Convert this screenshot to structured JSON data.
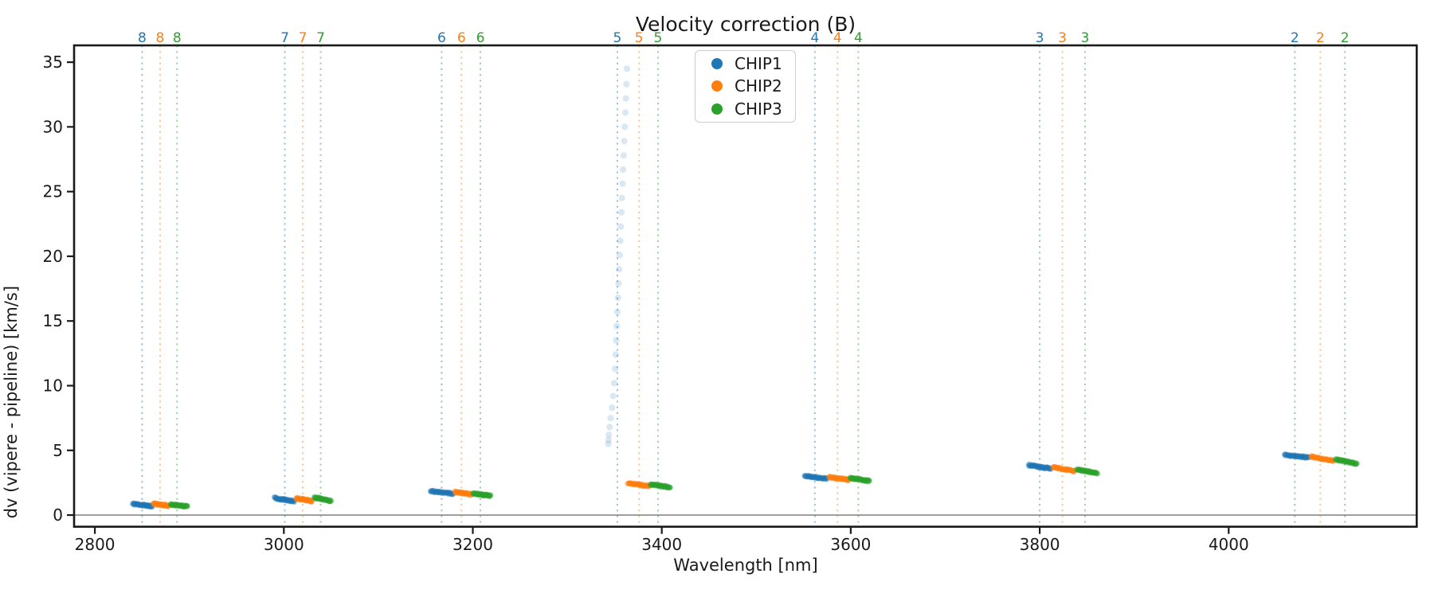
{
  "figure": {
    "title": "Velocity correction (B)"
  },
  "axes": {
    "xlabel": "Wavelength [nm]",
    "ylabel": "dv (vipere - pipeline) [km/s]",
    "xticks": [
      2800,
      3000,
      3200,
      3400,
      3600,
      3800,
      4000
    ],
    "yticks": [
      0,
      5,
      10,
      15,
      20,
      25,
      30,
      35
    ]
  },
  "legend": {
    "position": "upper center",
    "items": [
      {
        "label": "CHIP1",
        "color": "#1f77b4"
      },
      {
        "label": "CHIP2",
        "color": "#ff7f0e"
      },
      {
        "label": "CHIP3",
        "color": "#2ca02c"
      }
    ]
  },
  "chart_data": {
    "type": "scatter",
    "title": "Velocity correction (B)",
    "xlabel": "Wavelength [nm]",
    "ylabel": "dv (vipere - pipeline) [km/s]",
    "xlim": [
      2778,
      4199
    ],
    "ylim": [
      -0.9,
      36.3
    ],
    "grid": false,
    "zero_line_y": 0,
    "series_colors": {
      "CHIP1": "#1f77b4",
      "CHIP2": "#ff7f0e",
      "CHIP3": "#2ca02c"
    },
    "marker_lines_style": "dotted vertical line at each chip center, labeled with order number above top axis",
    "orders": [
      {
        "order": 8,
        "chips": [
          {
            "chip": "CHIP1",
            "center_nm": 2850,
            "span_nm": [
              2840,
              2861
            ],
            "dv": [
              0.86,
              0.68
            ]
          },
          {
            "chip": "CHIP2",
            "center_nm": 2869,
            "span_nm": [
              2862,
              2878
            ],
            "dv": [
              0.88,
              0.73
            ]
          },
          {
            "chip": "CHIP3",
            "center_nm": 2887,
            "span_nm": [
              2880,
              2898
            ],
            "dv": [
              0.82,
              0.66
            ]
          }
        ]
      },
      {
        "order": 7,
        "chips": [
          {
            "chip": "CHIP1",
            "center_nm": 3001,
            "span_nm": [
              2990,
              3011
            ],
            "dv": [
              1.32,
              1.06
            ]
          },
          {
            "chip": "CHIP2",
            "center_nm": 3020,
            "span_nm": [
              3013,
              3030
            ],
            "dv": [
              1.3,
              1.08
            ]
          },
          {
            "chip": "CHIP3",
            "center_nm": 3039,
            "span_nm": [
              3032,
              3050
            ],
            "dv": [
              1.36,
              1.1
            ]
          }
        ]
      },
      {
        "order": 6,
        "chips": [
          {
            "chip": "CHIP1",
            "center_nm": 3167,
            "span_nm": [
              3155,
              3179
            ],
            "dv": [
              1.85,
              1.65
            ]
          },
          {
            "chip": "CHIP2",
            "center_nm": 3188,
            "span_nm": [
              3181,
              3198
            ],
            "dv": [
              1.78,
              1.61
            ]
          },
          {
            "chip": "CHIP3",
            "center_nm": 3208,
            "span_nm": [
              3200,
              3219
            ],
            "dv": [
              1.67,
              1.5
            ]
          }
        ]
      },
      {
        "order": 5,
        "chips": [
          {
            "chip": "CHIP1",
            "center_nm": 3353,
            "span_nm": null,
            "dv": null,
            "outlier": true
          },
          {
            "chip": "CHIP2",
            "center_nm": 3376,
            "span_nm": [
              3364,
              3387
            ],
            "dv": [
              2.46,
              2.24
            ]
          },
          {
            "chip": "CHIP3",
            "center_nm": 3396,
            "span_nm": [
              3388,
              3409
            ],
            "dv": [
              2.36,
              2.14
            ]
          }
        ]
      },
      {
        "order": 4,
        "chips": [
          {
            "chip": "CHIP1",
            "center_nm": 3562,
            "span_nm": [
              3551,
              3575
            ],
            "dv": [
              3.05,
              2.8
            ]
          },
          {
            "chip": "CHIP2",
            "center_nm": 3586,
            "span_nm": [
              3577,
              3598
            ],
            "dv": [
              2.94,
              2.72
            ]
          },
          {
            "chip": "CHIP3",
            "center_nm": 3608,
            "span_nm": [
              3599,
              3620
            ],
            "dv": [
              2.86,
              2.62
            ]
          }
        ]
      },
      {
        "order": 3,
        "chips": [
          {
            "chip": "CHIP1",
            "center_nm": 3800,
            "span_nm": [
              3788,
              3812
            ],
            "dv": [
              3.88,
              3.58
            ]
          },
          {
            "chip": "CHIP2",
            "center_nm": 3824,
            "span_nm": [
              3814,
              3837
            ],
            "dv": [
              3.72,
              3.38
            ]
          },
          {
            "chip": "CHIP3",
            "center_nm": 3848,
            "span_nm": [
              3839,
              3861
            ],
            "dv": [
              3.54,
              3.23
            ]
          }
        ]
      },
      {
        "order": 2,
        "chips": [
          {
            "chip": "CHIP1",
            "center_nm": 4070,
            "span_nm": [
              4059,
              4085
            ],
            "dv": [
              4.64,
              4.45
            ]
          },
          {
            "chip": "CHIP2",
            "center_nm": 4097,
            "span_nm": [
              4087,
              4111
            ],
            "dv": [
              4.53,
              4.2
            ]
          },
          {
            "chip": "CHIP3",
            "center_nm": 4123,
            "span_nm": [
              4113,
              4136
            ],
            "dv": [
              4.3,
              3.97
            ]
          }
        ]
      }
    ],
    "outlier_trail": {
      "order": 5,
      "chip": "CHIP1",
      "points_nm_dv": [
        [
          3363.2,
          34.5
        ],
        [
          3362.6,
          33.3
        ],
        [
          3362.0,
          32.2
        ],
        [
          3361.4,
          31.1
        ],
        [
          3360.8,
          30.0
        ],
        [
          3360.2,
          28.9
        ],
        [
          3359.6,
          27.8
        ],
        [
          3359.0,
          26.7
        ],
        [
          3358.4,
          25.6
        ],
        [
          3357.8,
          24.5
        ],
        [
          3357.2,
          23.4
        ],
        [
          3356.6,
          22.3
        ],
        [
          3356.0,
          21.2
        ],
        [
          3355.4,
          20.1
        ],
        [
          3354.8,
          19.0
        ],
        [
          3354.2,
          17.9
        ],
        [
          3353.6,
          16.8
        ],
        [
          3353.0,
          15.7
        ],
        [
          3352.4,
          14.6
        ],
        [
          3351.8,
          13.5
        ],
        [
          3351.2,
          12.4
        ],
        [
          3350.5,
          11.3
        ],
        [
          3349.6,
          10.2
        ],
        [
          3348.5,
          9.2
        ],
        [
          3347.3,
          8.3
        ],
        [
          3345.9,
          7.5
        ],
        [
          3344.8,
          6.8
        ],
        [
          3344.0,
          6.2
        ],
        [
          3343.6,
          5.8
        ],
        [
          3343.4,
          5.5
        ]
      ]
    }
  }
}
